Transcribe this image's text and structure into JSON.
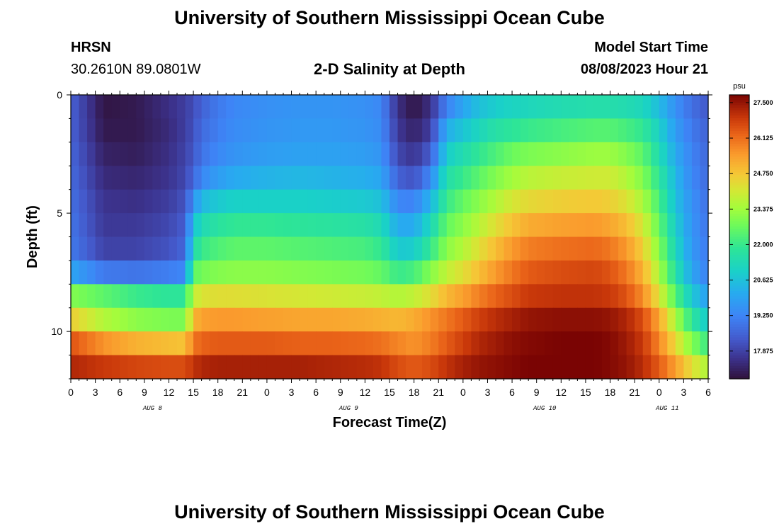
{
  "header": {
    "title": "University of Southern Mississippi Ocean Cube",
    "station_name": "HRSN",
    "station_coords": "30.2610N  89.0801W",
    "plot_title": "2-D Salinity at Depth",
    "model_start_label": "Model Start Time",
    "model_start_value": "08/08/2023 Hour 21"
  },
  "footer": {
    "title": "University of Southern Mississippi Ocean Cube"
  },
  "chart_data": {
    "type": "heatmap",
    "title": "2-D Salinity at Depth",
    "xlabel": "Forecast Time(Z)",
    "ylabel": "Depth (ft)",
    "x_tick_labels": [
      "0",
      "3",
      "6",
      "9",
      "12",
      "15",
      "18",
      "21",
      "0",
      "3",
      "6",
      "9",
      "12",
      "15",
      "18",
      "21",
      "0",
      "3",
      "6",
      "9",
      "12",
      "15",
      "18",
      "21",
      "0",
      "3",
      "6"
    ],
    "date_labels": [
      {
        "text": "AUG 8",
        "hour": 10
      },
      {
        "text": "AUG 9",
        "hour": 34
      },
      {
        "text": "AUG 10",
        "hour": 58
      },
      {
        "text": "AUG 11",
        "hour": 73
      }
    ],
    "x_range_hours": [
      0,
      78
    ],
    "y_range_ft": [
      0,
      12
    ],
    "y_ticks": [
      0,
      5,
      10
    ],
    "colorbar": {
      "unit": "psu",
      "ticks": [
        "27.500",
        "26.125",
        "24.750",
        "23.375",
        "22.000",
        "20.625",
        "19.250",
        "17.875"
      ],
      "min": 16.8,
      "max": 27.8
    },
    "depth_rows_ft": [
      0.5,
      1.5,
      2.5,
      3.5,
      4.5,
      5.5,
      6.5,
      7.5,
      8.5,
      9.5,
      10.5,
      11.5
    ],
    "key_hours": [
      0,
      4,
      8,
      12,
      14,
      15,
      16,
      18,
      20,
      24,
      28,
      32,
      36,
      38,
      40,
      42,
      44,
      46,
      48,
      50,
      52,
      54,
      56,
      60,
      64,
      66,
      68,
      70,
      72,
      74,
      76,
      78
    ],
    "salinity_psu": [
      [
        18.5,
        16.9,
        17.0,
        17.5,
        17.8,
        18.1,
        18.5,
        19.0,
        19.3,
        19.5,
        19.6,
        19.6,
        19.5,
        19.3,
        17.5,
        16.9,
        17.5,
        19.2,
        20.0,
        20.6,
        20.9,
        21.1,
        21.2,
        21.4,
        21.5,
        21.5,
        21.4,
        21.2,
        20.5,
        19.5,
        18.8,
        18.3
      ],
      [
        18.5,
        17.0,
        17.0,
        17.4,
        17.8,
        18.2,
        18.7,
        19.1,
        19.4,
        19.6,
        19.7,
        19.7,
        19.6,
        19.4,
        17.7,
        17.2,
        17.8,
        20.2,
        20.7,
        21.2,
        21.6,
        21.8,
        22.0,
        22.2,
        22.4,
        22.4,
        22.2,
        21.9,
        21.0,
        19.8,
        19.0,
        18.5
      ],
      [
        18.6,
        17.2,
        17.1,
        17.5,
        17.9,
        18.3,
        18.9,
        19.3,
        19.6,
        19.8,
        19.9,
        19.9,
        19.8,
        19.6,
        18.0,
        17.6,
        18.4,
        20.9,
        21.4,
        21.9,
        22.3,
        22.7,
        22.9,
        23.1,
        23.3,
        23.3,
        23.0,
        22.5,
        21.4,
        20.1,
        19.2,
        18.6
      ],
      [
        18.7,
        17.4,
        17.3,
        17.6,
        18.0,
        18.6,
        19.3,
        19.8,
        20.1,
        20.3,
        20.4,
        20.3,
        20.2,
        20.0,
        18.5,
        18.2,
        19.3,
        21.5,
        22.0,
        22.5,
        23.0,
        23.4,
        23.7,
        23.9,
        24.0,
        24.0,
        23.6,
        23.0,
        21.8,
        20.4,
        19.3,
        18.7
      ],
      [
        18.8,
        17.6,
        17.5,
        17.8,
        18.2,
        19.5,
        20.4,
        20.8,
        21.0,
        21.0,
        21.0,
        20.9,
        20.8,
        20.6,
        19.3,
        19.2,
        20.3,
        22.0,
        22.6,
        23.1,
        23.6,
        24.1,
        24.4,
        24.6,
        24.7,
        24.6,
        24.2,
        23.5,
        22.2,
        20.6,
        19.5,
        18.8
      ],
      [
        18.9,
        17.7,
        17.7,
        18.0,
        18.4,
        20.6,
        21.3,
        21.7,
        21.9,
        21.9,
        21.8,
        21.7,
        21.6,
        21.3,
        20.1,
        20.1,
        21.2,
        22.6,
        23.1,
        23.7,
        24.3,
        24.8,
        25.2,
        25.4,
        25.5,
        25.3,
        24.9,
        24.1,
        22.6,
        20.9,
        19.6,
        18.9
      ],
      [
        19.0,
        17.9,
        17.9,
        18.2,
        18.6,
        21.4,
        22.0,
        22.3,
        22.5,
        22.5,
        22.4,
        22.3,
        22.2,
        21.9,
        20.8,
        20.9,
        21.9,
        23.1,
        23.6,
        24.3,
        24.9,
        25.5,
        25.9,
        26.1,
        26.2,
        26.0,
        25.5,
        24.6,
        23.0,
        21.2,
        19.7,
        19.0
      ],
      [
        20.0,
        19.0,
        18.9,
        19.1,
        19.3,
        22.5,
        22.8,
        23.0,
        23.1,
        23.1,
        23.0,
        22.9,
        22.8,
        22.6,
        22.0,
        22.2,
        23.0,
        23.8,
        24.3,
        24.9,
        25.5,
        26.0,
        26.4,
        26.6,
        26.7,
        26.5,
        26.0,
        25.1,
        23.5,
        21.6,
        20.0,
        19.1
      ],
      [
        23.0,
        22.5,
        22.0,
        21.8,
        21.8,
        23.8,
        24.2,
        24.3,
        24.3,
        24.2,
        24.1,
        24.0,
        23.9,
        23.8,
        23.6,
        23.8,
        24.3,
        25.0,
        25.4,
        25.9,
        26.3,
        26.6,
        26.9,
        27.0,
        27.0,
        26.9,
        26.5,
        25.7,
        24.2,
        22.4,
        20.8,
        19.8
      ],
      [
        24.6,
        23.6,
        23.1,
        22.9,
        22.9,
        25.0,
        25.4,
        25.5,
        25.5,
        25.4,
        25.3,
        25.3,
        25.2,
        25.1,
        25.0,
        25.2,
        25.6,
        26.0,
        26.4,
        26.8,
        27.1,
        27.3,
        27.5,
        27.6,
        27.6,
        27.5,
        27.2,
        26.6,
        25.3,
        23.5,
        21.8,
        20.8
      ],
      [
        26.5,
        25.6,
        25.1,
        24.9,
        24.8,
        26.0,
        26.3,
        26.4,
        26.4,
        26.4,
        26.3,
        26.3,
        26.2,
        26.1,
        25.8,
        25.6,
        25.9,
        26.4,
        26.8,
        27.2,
        27.4,
        27.6,
        27.7,
        27.8,
        27.8,
        27.7,
        27.4,
        26.9,
        25.8,
        24.4,
        23.0,
        22.0
      ],
      [
        27.2,
        26.9,
        26.7,
        26.6,
        26.6,
        27.0,
        27.2,
        27.3,
        27.3,
        27.3,
        27.3,
        27.2,
        27.1,
        27.0,
        26.6,
        26.4,
        26.6,
        27.0,
        27.3,
        27.5,
        27.6,
        27.7,
        27.8,
        27.8,
        27.8,
        27.7,
        27.5,
        27.1,
        26.4,
        25.4,
        24.3,
        23.5
      ]
    ]
  }
}
